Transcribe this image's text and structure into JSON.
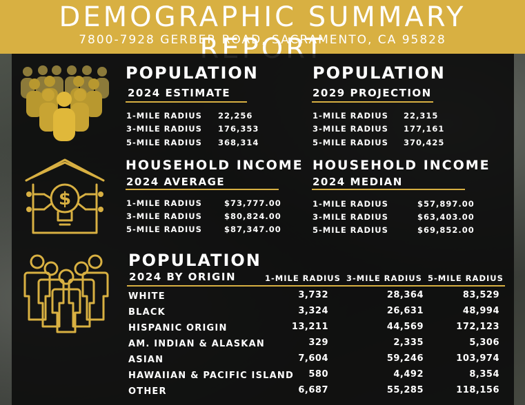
{
  "header": {
    "title": "DEMOGRAPHIC SUMMARY REPORT",
    "address": "7800-7928 GERBER ROAD, SACRAMENTO, CA 95828"
  },
  "colors": {
    "gold": "#d8b042",
    "panel": "#0c0c0c",
    "text": "#ffffff"
  },
  "population_2024": {
    "title": "POPULATION",
    "subtitle": "2024 ESTIMATE",
    "rows": [
      {
        "label": "1-MILE RADIUS",
        "value": "22,256"
      },
      {
        "label": "3-MILE RADIUS",
        "value": "176,353"
      },
      {
        "label": "5-MILE RADIUS",
        "value": "368,314"
      }
    ]
  },
  "population_2029": {
    "title": "POPULATION",
    "subtitle": "2029 PROJECTION",
    "rows": [
      {
        "label": "1-MILE RADIUS",
        "value": "22,315"
      },
      {
        "label": "3-MILE RADIUS",
        "value": "177,161"
      },
      {
        "label": "5-MILE RADIUS",
        "value": "370,425"
      }
    ]
  },
  "income_average": {
    "title": "HOUSEHOLD INCOME",
    "subtitle": "2024 AVERAGE",
    "rows": [
      {
        "label": "1-MILE RADIUS",
        "value": "$73,777.00"
      },
      {
        "label": "3-MILE RADIUS",
        "value": "$80,824.00"
      },
      {
        "label": "5-MILE RADIUS",
        "value": "$87,347.00"
      }
    ]
  },
  "income_median": {
    "title": "HOUSEHOLD INCOME",
    "subtitle": "2024 MEDIAN",
    "rows": [
      {
        "label": "1-MILE RADIUS",
        "value": "$57,897.00"
      },
      {
        "label": "3-MILE RADIUS",
        "value": "$63,403.00"
      },
      {
        "label": "5-MILE RADIUS",
        "value": "$69,852.00"
      }
    ]
  },
  "origin": {
    "title": "POPULATION",
    "subtitle": "2024 BY ORIGIN",
    "columns": [
      "1-MILE RADIUS",
      "3-MILE RADIUS",
      "5-MILE RADIUS"
    ],
    "rows": [
      {
        "label": "WHITE",
        "v1": "3,732",
        "v3": "28,364",
        "v5": "83,529"
      },
      {
        "label": "BLACK",
        "v1": "3,324",
        "v3": "26,631",
        "v5": "48,994"
      },
      {
        "label": "HISPANIC ORIGIN",
        "v1": "13,211",
        "v3": "44,569",
        "v5": "172,123"
      },
      {
        "label": "AM. INDIAN & ALASKAN",
        "v1": "329",
        "v3": "2,335",
        "v5": "5,306"
      },
      {
        "label": "ASIAN",
        "v1": "7,604",
        "v3": "59,246",
        "v5": "103,974"
      },
      {
        "label": "HAWAIIAN & PACIFIC ISLAND",
        "v1": "580",
        "v3": "4,492",
        "v5": "8,354"
      },
      {
        "label": "OTHER",
        "v1": "6,687",
        "v3": "55,285",
        "v5": "118,156"
      }
    ]
  },
  "icons": [
    "crowd-icon",
    "house-income-icon",
    "people-outline-icon"
  ]
}
